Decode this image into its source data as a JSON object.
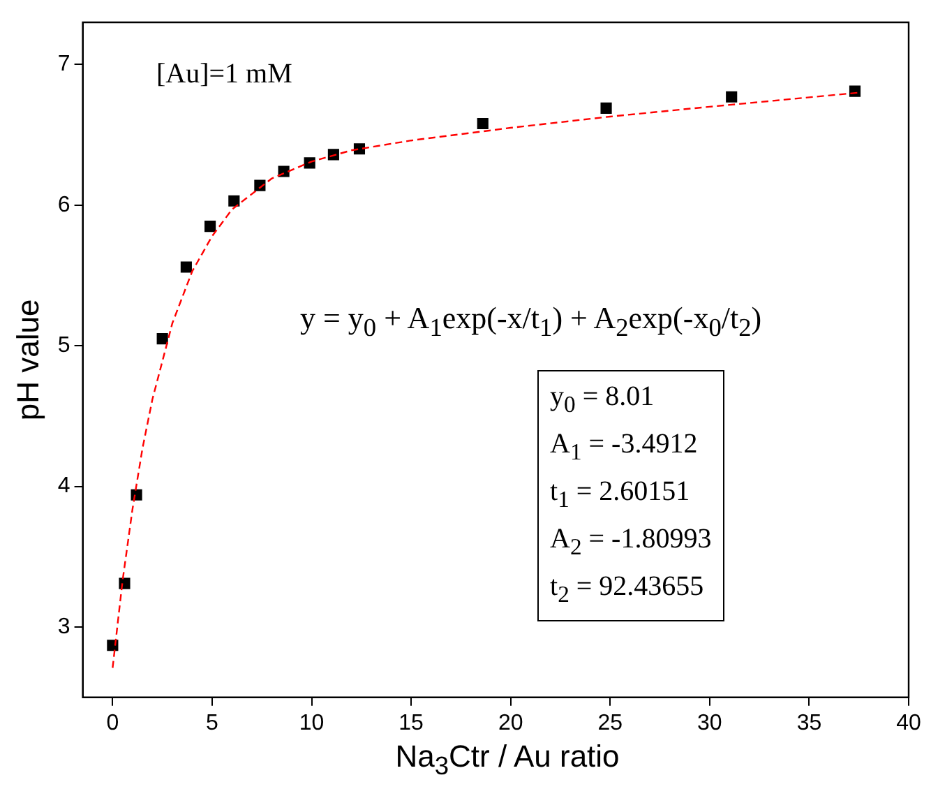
{
  "chart_data": {
    "type": "scatter",
    "xlabel": "Na$_{3}$Ctr / Au ratio",
    "ylabel": "pH value",
    "xlim": [
      -1.5,
      40
    ],
    "ylim": [
      2.5,
      7.3
    ],
    "xticks": [
      0,
      5,
      10,
      15,
      20,
      25,
      30,
      35,
      40
    ],
    "yticks": [
      3,
      4,
      5,
      6,
      7
    ],
    "grid": false,
    "legend": false,
    "annotations": [
      "[Au]=1 mM",
      "y = y$_{0}$ + A$_{1}$exp(-x/t$_{1}$) + A$_{2}$exp(-x$_{0}$/t$_{2}$)",
      "y$_{0}$ = 8.01",
      "A$_{1}$ = -3.4912",
      "t$_{1}$ = 2.60151",
      "A$_{2}$ = -1.80993",
      "t$_{2}$ = 92.43655"
    ],
    "series": [
      {
        "type": "scatter",
        "color": "#000000",
        "marker": "square",
        "x": [
          0,
          0.6,
          1.2,
          2.5,
          3.7,
          4.9,
          6.1,
          7.4,
          8.6,
          9.9,
          11.1,
          12.4,
          18.6,
          24.8,
          31.1,
          37.3
        ],
        "values": [
          2.87,
          3.31,
          3.94,
          5.05,
          5.56,
          5.85,
          6.03,
          6.14,
          6.24,
          6.3,
          6.36,
          6.4,
          6.58,
          6.69,
          6.77,
          6.81
        ]
      },
      {
        "type": "line",
        "color": "#ff0000",
        "marker": "none",
        "line_style": "dashed",
        "x": [
          0,
          0.5,
          1,
          1.5,
          2,
          3,
          4,
          5,
          6,
          8,
          10,
          12,
          15,
          20,
          25,
          30,
          37.5
        ],
        "values": [
          2.71,
          3.33,
          3.84,
          4.27,
          4.62,
          5.16,
          5.53,
          5.78,
          5.97,
          6.19,
          6.31,
          6.39,
          6.46,
          6.55,
          6.63,
          6.7,
          6.8
        ]
      }
    ]
  }
}
